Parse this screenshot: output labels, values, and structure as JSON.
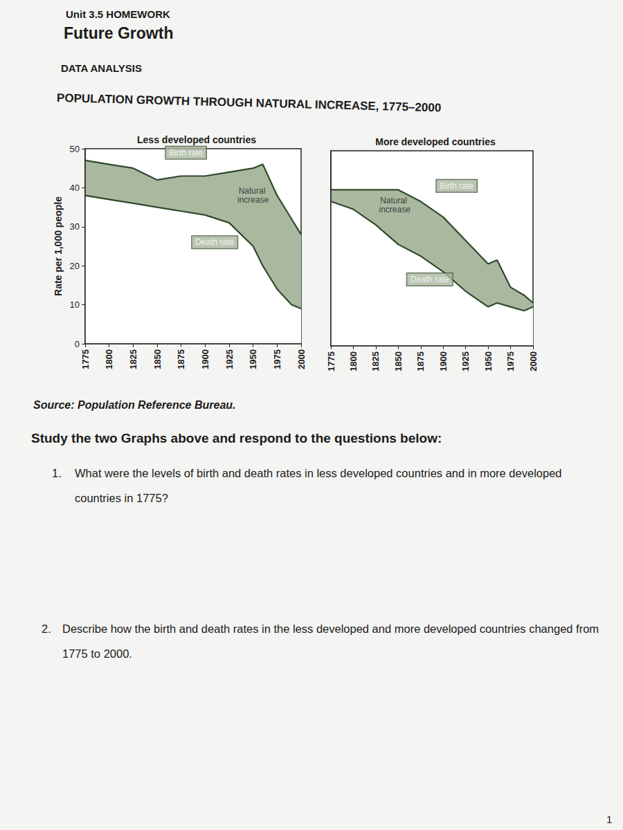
{
  "page": {
    "unit": "Unit 3.5 HOMEWORK",
    "heading": "Future Growth",
    "section": "DATA ANALYSIS",
    "title": "POPULATION GROWTH THROUGH NATURAL INCREASE, 1775–2000",
    "source": "Source: Population Reference Bureau.",
    "instruction": "Study the two Graphs above and respond to the questions below:",
    "questions": [
      {
        "number": "1.",
        "text": "What were the levels of birth and death rates in less developed countries and in more developed countries in 1775?"
      },
      {
        "number": "2.",
        "text": "Describe how the birth and death rates in the less developed and more developed countries changed from 1775 to 2000."
      }
    ],
    "page_number": "1"
  },
  "chart_data": [
    {
      "type": "area",
      "title": "Less developed countries",
      "y_label": "Rate per 1,000 people",
      "color": "#aab8a0",
      "x": [
        1775,
        1800,
        1825,
        1850,
        1875,
        1900,
        1925,
        1950,
        1960,
        1975,
        1990,
        2000
      ],
      "series": [
        {
          "name": "Birth rate",
          "color": "#2f4a2c",
          "values": [
            47,
            46,
            45,
            42,
            43,
            43,
            44,
            45,
            46,
            38,
            32,
            28
          ],
          "label_at": [
            1880,
            49
          ]
        },
        {
          "name": "Death rate",
          "color": "#2f4a2c",
          "values": [
            38,
            37,
            36,
            35,
            34,
            33,
            31,
            25,
            20,
            14,
            10,
            9
          ],
          "label_at": [
            1910,
            26
          ]
        }
      ],
      "annotations": [
        {
          "text": "Natural increase",
          "x": 1950,
          "y": 38
        }
      ],
      "xlim": [
        1775,
        2000
      ],
      "xticks": [
        1775,
        1800,
        1825,
        1850,
        1875,
        1900,
        1925,
        1950,
        1975,
        2000
      ],
      "ylim": [
        0,
        50
      ],
      "yticks": [
        0,
        10,
        20,
        30,
        40,
        50
      ],
      "grid": false
    },
    {
      "type": "area",
      "title": "More developed countries",
      "color": "#aab8a0",
      "x": [
        1775,
        1800,
        1825,
        1850,
        1875,
        1900,
        1925,
        1950,
        1960,
        1975,
        1990,
        2000
      ],
      "series": [
        {
          "name": "Birth rate",
          "color": "#2f4a2c",
          "values": [
            40,
            40,
            40,
            40,
            37,
            33,
            27,
            21,
            22,
            15,
            13,
            11
          ],
          "label_at": [
            1915,
            41
          ]
        },
        {
          "name": "Death rate",
          "color": "#2f4a2c",
          "values": [
            37,
            35,
            31,
            26,
            23,
            19,
            14,
            10,
            11,
            10,
            9,
            10
          ],
          "label_at": [
            1885,
            17
          ]
        }
      ],
      "annotations": [
        {
          "text": "Natural increase",
          "x": 1846,
          "y": 36
        }
      ],
      "xlim": [
        1775,
        2000
      ],
      "xticks": [
        1775,
        1800,
        1825,
        1850,
        1875,
        1900,
        1925,
        1950,
        1975,
        2000
      ],
      "ylim": [
        0,
        50
      ],
      "grid": false,
      "tick_labels": "x"
    }
  ]
}
